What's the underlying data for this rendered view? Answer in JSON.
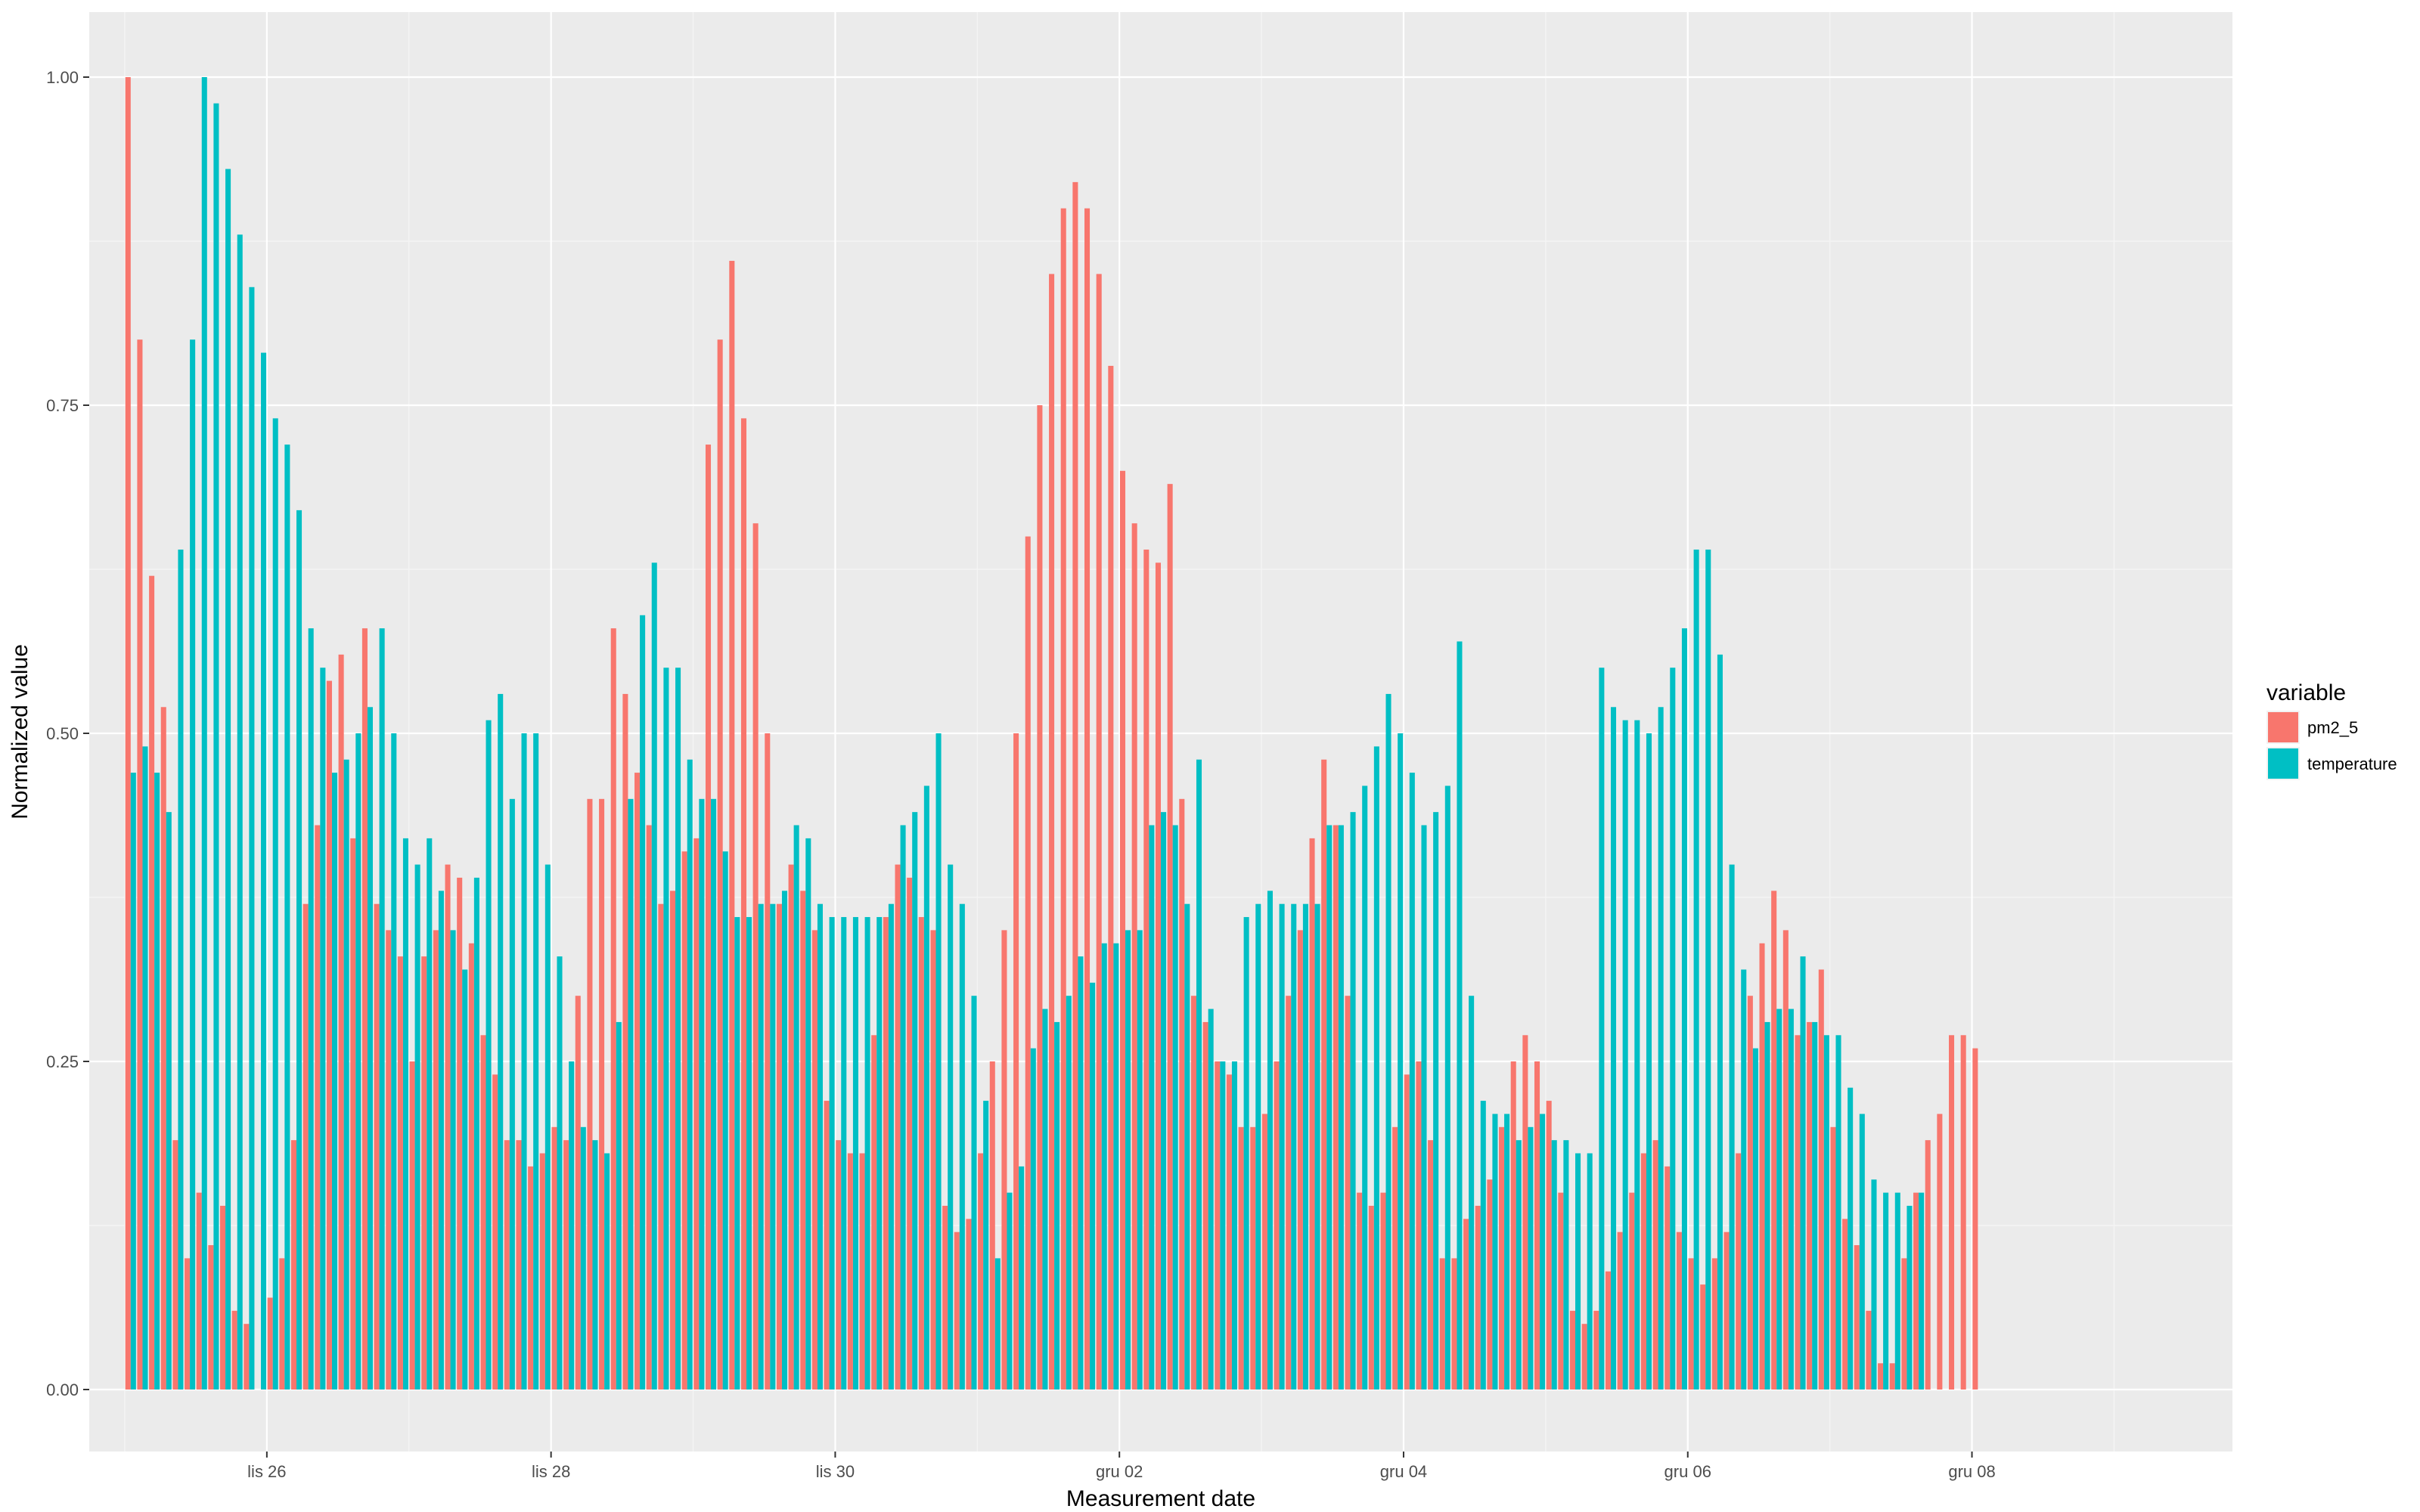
{
  "chart_data": {
    "type": "bar",
    "xlabel": "Measurement date",
    "ylabel": "Normalized value",
    "ylim": [
      0,
      1
    ],
    "y_ticks": [
      "0.00",
      "0.25",
      "0.50",
      "0.75",
      "1.00"
    ],
    "x_range": [
      "2017-11-24T18:00",
      "2017-12-09T20:00"
    ],
    "x_ticks": [
      {
        "date": "2017-11-26",
        "label": "lis 26"
      },
      {
        "date": "2017-11-28",
        "label": "lis 28"
      },
      {
        "date": "2017-11-30",
        "label": "lis 30"
      },
      {
        "date": "2017-12-02",
        "label": "gru 02"
      },
      {
        "date": "2017-12-04",
        "label": "gru 04"
      },
      {
        "date": "2017-12-06",
        "label": "gru 06"
      },
      {
        "date": "2017-12-08",
        "label": "gru 08"
      }
    ],
    "x_start": "2017-11-25T01:00",
    "x_step_hours": 2,
    "grid": true,
    "legend": {
      "title": "variable",
      "position": "right"
    },
    "series": [
      {
        "name": "pm2_5",
        "color": "#F8766D",
        "values": [
          1.0,
          0.8,
          0.62,
          0.52,
          0.19,
          0.1,
          0.15,
          0.11,
          0.14,
          0.06,
          0.05,
          0.0,
          0.07,
          0.1,
          0.19,
          0.37,
          0.43,
          0.54,
          0.56,
          0.42,
          0.58,
          0.37,
          0.35,
          0.33,
          0.25,
          0.33,
          0.35,
          0.4,
          0.39,
          0.34,
          0.27,
          0.24,
          0.19,
          0.19,
          0.17,
          0.18,
          0.2,
          0.19,
          0.3,
          0.45,
          0.45,
          0.58,
          0.53,
          0.47,
          0.43,
          0.37,
          0.38,
          0.41,
          0.42,
          0.72,
          0.8,
          0.86,
          0.74,
          0.66,
          0.5,
          0.37,
          0.4,
          0.38,
          0.35,
          0.22,
          0.19,
          0.18,
          0.18,
          0.27,
          0.36,
          0.4,
          0.39,
          0.36,
          0.35,
          0.14,
          0.12,
          0.13,
          0.18,
          0.25,
          0.35,
          0.5,
          0.65,
          0.75,
          0.85,
          0.9,
          0.92,
          0.9,
          0.85,
          0.78,
          0.7,
          0.66,
          0.64,
          0.63,
          0.69,
          0.45,
          0.3,
          0.28,
          0.25,
          0.24,
          0.2,
          0.2,
          0.21,
          0.25,
          0.3,
          0.35,
          0.42,
          0.48,
          0.43,
          0.3,
          0.15,
          0.14,
          0.15,
          0.2,
          0.24,
          0.25,
          0.19,
          0.1,
          0.1,
          0.13,
          0.14,
          0.16,
          0.2,
          0.25,
          0.27,
          0.25,
          0.22,
          0.15,
          0.06,
          0.05,
          0.06,
          0.09,
          0.12,
          0.15,
          0.18,
          0.19,
          0.17,
          0.12,
          0.1,
          0.08,
          0.1,
          0.12,
          0.18,
          0.3,
          0.34,
          0.38,
          0.35,
          0.27,
          0.28,
          0.32,
          0.2,
          0.13,
          0.11,
          0.06,
          0.02,
          0.02,
          0.1,
          0.15,
          0.19,
          0.21,
          0.27,
          0.27,
          0.26
        ]
      },
      {
        "name": "temperature",
        "color": "#00BFC4",
        "values": [
          0.47,
          0.49,
          0.47,
          0.44,
          0.64,
          0.8,
          1.0,
          0.98,
          0.93,
          0.88,
          0.84,
          0.79,
          0.74,
          0.72,
          0.67,
          0.58,
          0.55,
          0.47,
          0.48,
          0.5,
          0.52,
          0.58,
          0.5,
          0.42,
          0.4,
          0.42,
          0.38,
          0.35,
          0.32,
          0.39,
          0.51,
          0.53,
          0.45,
          0.5,
          0.5,
          0.4,
          0.33,
          0.25,
          0.2,
          0.19,
          0.18,
          0.28,
          0.45,
          0.59,
          0.63,
          0.55,
          0.55,
          0.48,
          0.45,
          0.45,
          0.41,
          0.36,
          0.36,
          0.37,
          0.37,
          0.38,
          0.43,
          0.42,
          0.37,
          0.36,
          0.36,
          0.36,
          0.36,
          0.36,
          0.37,
          0.43,
          0.44,
          0.46,
          0.5,
          0.4,
          0.37,
          0.3,
          0.22,
          0.1,
          0.15,
          0.17,
          0.26,
          0.29,
          0.28,
          0.3,
          0.33,
          0.31,
          0.34,
          0.34,
          0.35,
          0.35,
          0.43,
          0.44,
          0.43,
          0.37,
          0.48,
          0.29,
          0.25,
          0.25,
          0.36,
          0.37,
          0.38,
          0.37,
          0.37,
          0.37,
          0.37,
          0.43,
          0.43,
          0.44,
          0.46,
          0.49,
          0.53,
          0.5,
          0.47,
          0.43,
          0.44,
          0.46,
          0.57,
          0.3,
          0.22,
          0.21,
          0.21,
          0.19,
          0.2,
          0.21,
          0.19,
          0.19,
          0.18,
          0.18,
          0.55,
          0.52,
          0.51,
          0.51,
          0.5,
          0.52,
          0.55,
          0.58,
          0.64,
          0.64,
          0.56,
          0.4,
          0.32,
          0.26,
          0.28,
          0.29,
          0.29,
          0.33,
          0.28,
          0.27,
          0.27,
          0.23,
          0.21,
          0.16,
          0.15,
          0.15,
          0.14,
          0.15
        ]
      }
    ]
  }
}
